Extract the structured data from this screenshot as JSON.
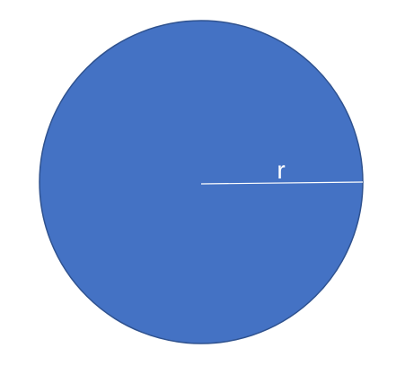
{
  "diagram": {
    "radius_label": "r"
  },
  "colors": {
    "background": "#ffffff",
    "circle_fill": "#4472c4",
    "circle_stroke": "#2f528f",
    "radius_line": "#ffffff",
    "label": "#ffffff"
  }
}
